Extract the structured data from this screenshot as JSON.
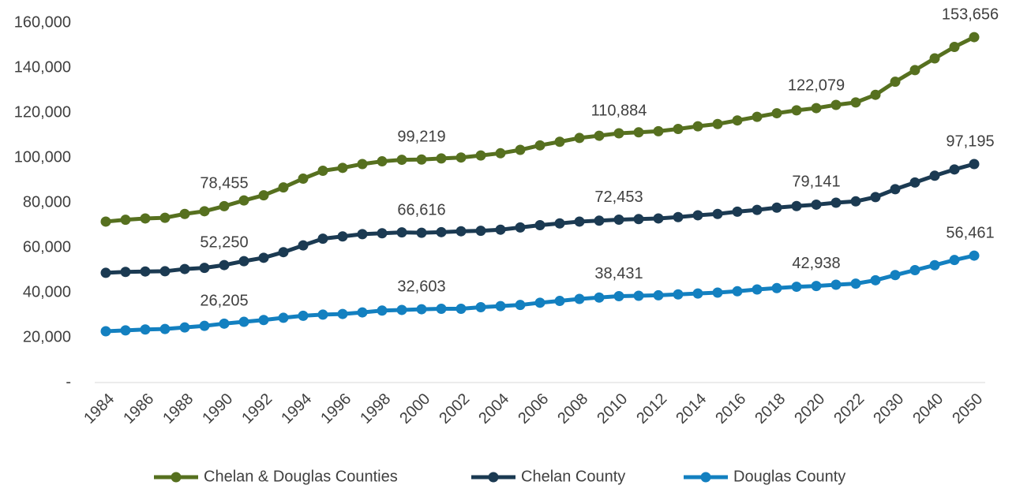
{
  "chart_data": {
    "type": "line",
    "categories": [
      "1984",
      null,
      "1986",
      null,
      "1988",
      null,
      "1990",
      null,
      "1992",
      null,
      "1994",
      null,
      "1996",
      null,
      "1998",
      null,
      "2000",
      null,
      "2002",
      null,
      "2004",
      null,
      "2006",
      null,
      "2008",
      null,
      "2010",
      null,
      "2012",
      null,
      "2014",
      null,
      "2016",
      null,
      "2018",
      null,
      "2020",
      null,
      "2022",
      null,
      "2030",
      null,
      "2040",
      null,
      "2050"
    ],
    "series": [
      {
        "name": "Chelan & Douglas Counties",
        "color": "#56701f",
        "values": [
          71600,
          72400,
          73000,
          73300,
          75000,
          76200,
          78455,
          81000,
          83300,
          86800,
          90700,
          94200,
          95500,
          97200,
          98400,
          99100,
          99219,
          99700,
          100100,
          101000,
          102000,
          103500,
          105500,
          107100,
          108800,
          109800,
          110884,
          111300,
          111800,
          112800,
          114000,
          115000,
          116600,
          118200,
          119800,
          121100,
          122079,
          123500,
          124600,
          128000,
          133800,
          139000,
          144200,
          149300,
          153656
        ],
        "value_labels": [
          null,
          null,
          null,
          null,
          null,
          null,
          "78,455",
          null,
          null,
          null,
          null,
          null,
          null,
          null,
          null,
          null,
          "99,219",
          null,
          null,
          null,
          null,
          null,
          null,
          null,
          null,
          null,
          "110,884",
          null,
          null,
          null,
          null,
          null,
          null,
          null,
          null,
          null,
          "122,079",
          null,
          null,
          null,
          null,
          null,
          null,
          null,
          "153,656"
        ]
      },
      {
        "name": "Chelan County",
        "color": "#1b3a52",
        "values": [
          48800,
          49200,
          49400,
          49500,
          50500,
          51000,
          52250,
          54000,
          55500,
          58000,
          61000,
          64000,
          65000,
          66000,
          66400,
          66800,
          66616,
          66900,
          67300,
          67500,
          68000,
          69000,
          70000,
          70800,
          71600,
          72000,
          72453,
          72700,
          73000,
          73600,
          74400,
          75000,
          76000,
          76800,
          77800,
          78500,
          79141,
          80000,
          80600,
          82500,
          86000,
          89000,
          92000,
          94800,
          97195
        ],
        "value_labels": [
          null,
          null,
          null,
          null,
          null,
          null,
          "52,250",
          null,
          null,
          null,
          null,
          null,
          null,
          null,
          null,
          null,
          "66,616",
          null,
          null,
          null,
          null,
          null,
          null,
          null,
          null,
          null,
          "72,453",
          null,
          null,
          null,
          null,
          null,
          null,
          null,
          null,
          null,
          "79,141",
          null,
          null,
          null,
          null,
          null,
          null,
          null,
          "97,195"
        ]
      },
      {
        "name": "Douglas County",
        "color": "#1380c0",
        "values": [
          22800,
          23200,
          23600,
          23800,
          24500,
          25200,
          26205,
          27000,
          27800,
          28800,
          29700,
          30200,
          30500,
          31200,
          32000,
          32300,
          32603,
          32800,
          32800,
          33500,
          34000,
          34500,
          35500,
          36300,
          37200,
          37800,
          38431,
          38600,
          38800,
          39200,
          39600,
          40000,
          40600,
          41400,
          42000,
          42600,
          42938,
          43500,
          44000,
          45500,
          47800,
          50000,
          52200,
          54500,
          56461
        ],
        "value_labels": [
          null,
          null,
          null,
          null,
          null,
          null,
          "26,205",
          null,
          null,
          null,
          null,
          null,
          null,
          null,
          null,
          null,
          "32,603",
          null,
          null,
          null,
          null,
          null,
          null,
          null,
          null,
          null,
          "38,431",
          null,
          null,
          null,
          null,
          null,
          null,
          null,
          null,
          null,
          "42,938",
          null,
          null,
          null,
          null,
          null,
          null,
          null,
          "56,461"
        ]
      }
    ],
    "ylim": [
      0,
      160000
    ],
    "yticks": [
      {
        "value": 0,
        "label": "-"
      },
      {
        "value": 20000,
        "label": "20,000"
      },
      {
        "value": 40000,
        "label": "40,000"
      },
      {
        "value": 60000,
        "label": "60,000"
      },
      {
        "value": 80000,
        "label": "80,000"
      },
      {
        "value": 100000,
        "label": "100,000"
      },
      {
        "value": 120000,
        "label": "120,000"
      },
      {
        "value": 140000,
        "label": "140,000"
      },
      {
        "value": 160000,
        "label": "160,000"
      }
    ],
    "legend": "bottom"
  }
}
